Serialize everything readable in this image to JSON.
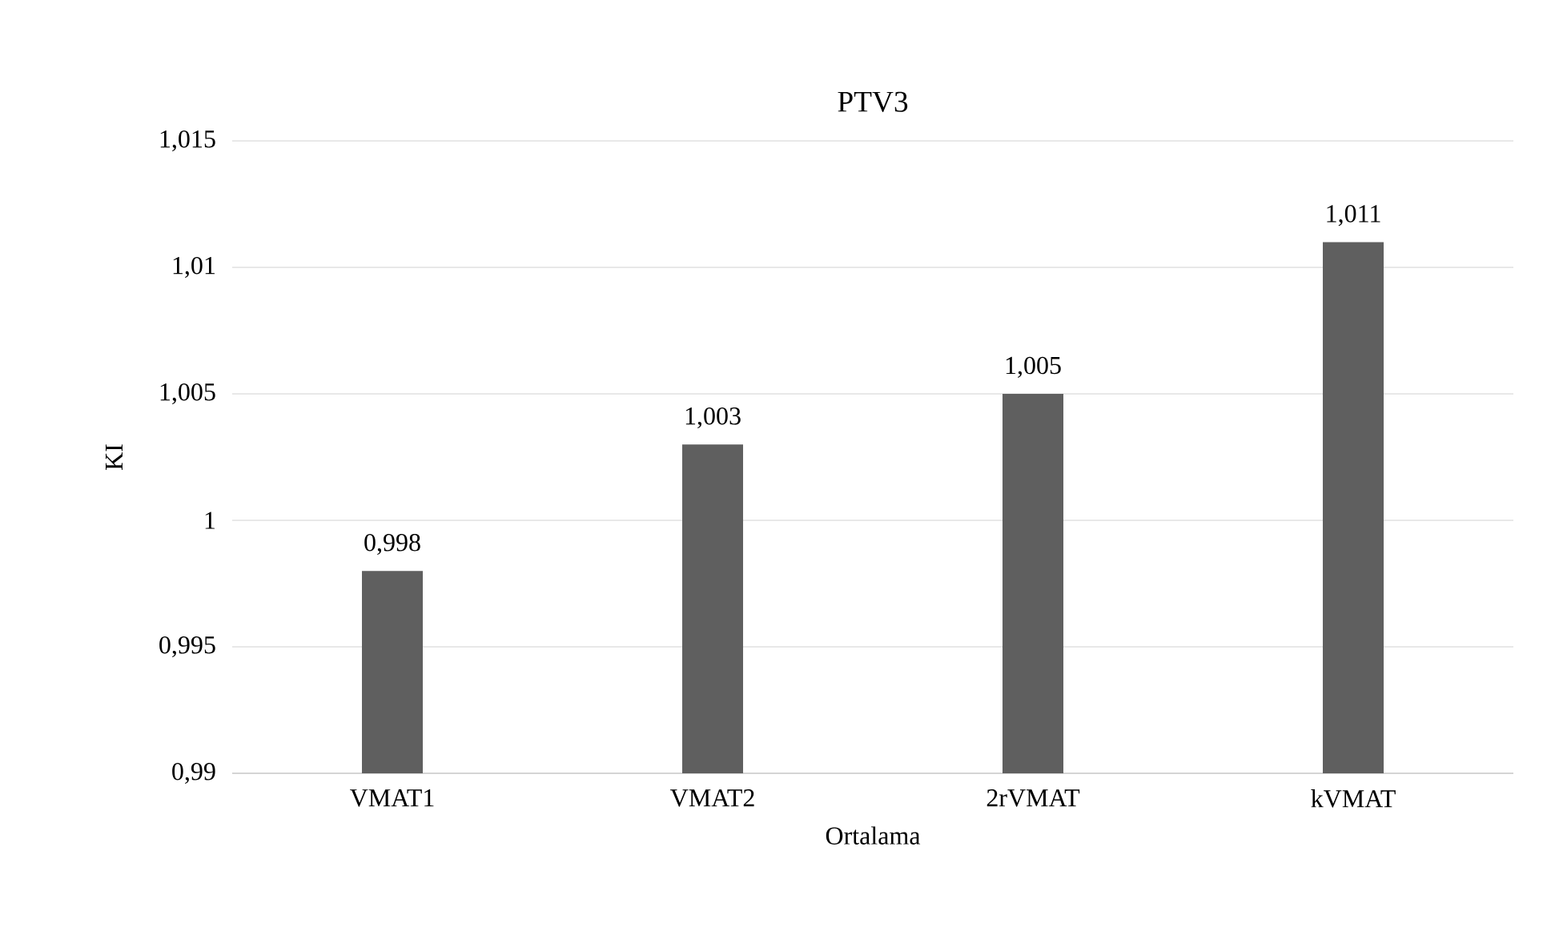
{
  "chart_data": {
    "type": "bar",
    "title": "PTV3",
    "xlabel": "Ortalama",
    "ylabel": "KI",
    "categories": [
      "VMAT1",
      "VMAT2",
      "2rVMAT",
      "kVMAT"
    ],
    "values": [
      0.998,
      1.003,
      1.005,
      1.011
    ],
    "value_labels": [
      "0,998",
      "1,003",
      "1,005",
      "1,011"
    ],
    "color": "#5f5f5f",
    "ylim": [
      0.99,
      1.015
    ],
    "yticks": [
      {
        "value": 0.99,
        "label": "0,99"
      },
      {
        "value": 0.995,
        "label": "0,995"
      },
      {
        "value": 1,
        "label": "1"
      },
      {
        "value": 1.005,
        "label": "1,005"
      },
      {
        "value": 1.01,
        "label": "1,01"
      },
      {
        "value": 1.015,
        "label": "1,015"
      }
    ],
    "grid": "y"
  }
}
